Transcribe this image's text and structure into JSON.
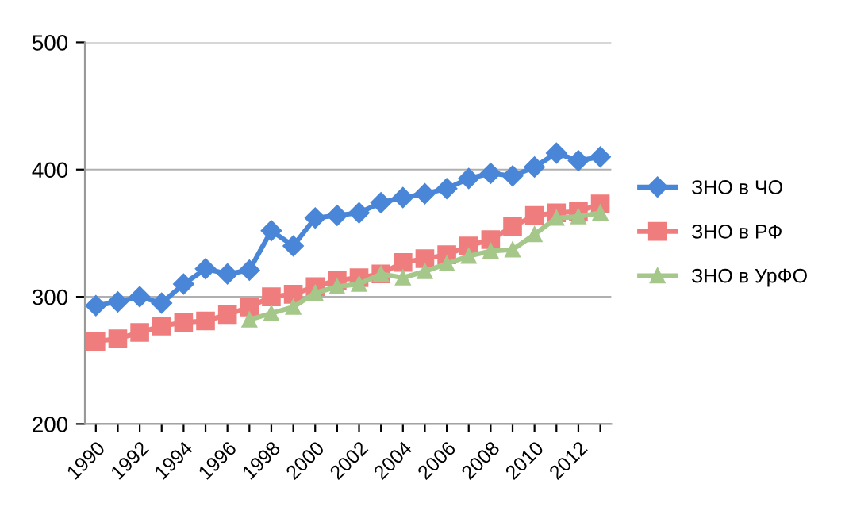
{
  "chart_data": {
    "type": "line",
    "categories": [
      "1990",
      null,
      "1992",
      null,
      "1994",
      null,
      "1996",
      null,
      "1998",
      null,
      "2000",
      null,
      "2002",
      null,
      "2004",
      null,
      "2006",
      null,
      "2008",
      null,
      "2010",
      null,
      "2012",
      null
    ],
    "ylim": [
      200,
      500
    ],
    "yticks": [
      200,
      300,
      400,
      500
    ],
    "grid": "y",
    "legend": "right",
    "series": [
      {
        "name": "ЗНО в ЧО",
        "color": "#4a86d8",
        "marker": "diamond",
        "values": [
          293,
          296,
          300,
          295,
          310,
          322,
          318,
          321,
          352,
          340,
          362,
          364,
          366,
          374,
          378,
          381,
          385,
          393,
          397,
          395,
          402,
          413,
          407,
          410
        ]
      },
      {
        "name": "ЗНО в РФ",
        "color": "#f07d7d",
        "marker": "square",
        "values": [
          265,
          267,
          272,
          277,
          280,
          281,
          286,
          292,
          300,
          302,
          308,
          313,
          315,
          318,
          327,
          330,
          333,
          340,
          345,
          355,
          364,
          366,
          367,
          373
        ]
      },
      {
        "name": "ЗНО в УрФО",
        "color": "#a5c78a",
        "marker": "triangle",
        "values": [
          null,
          null,
          null,
          null,
          null,
          null,
          null,
          282,
          287,
          292,
          303,
          308,
          310,
          318,
          315,
          320,
          326,
          332,
          336,
          337,
          349,
          362,
          363,
          366
        ]
      }
    ]
  }
}
